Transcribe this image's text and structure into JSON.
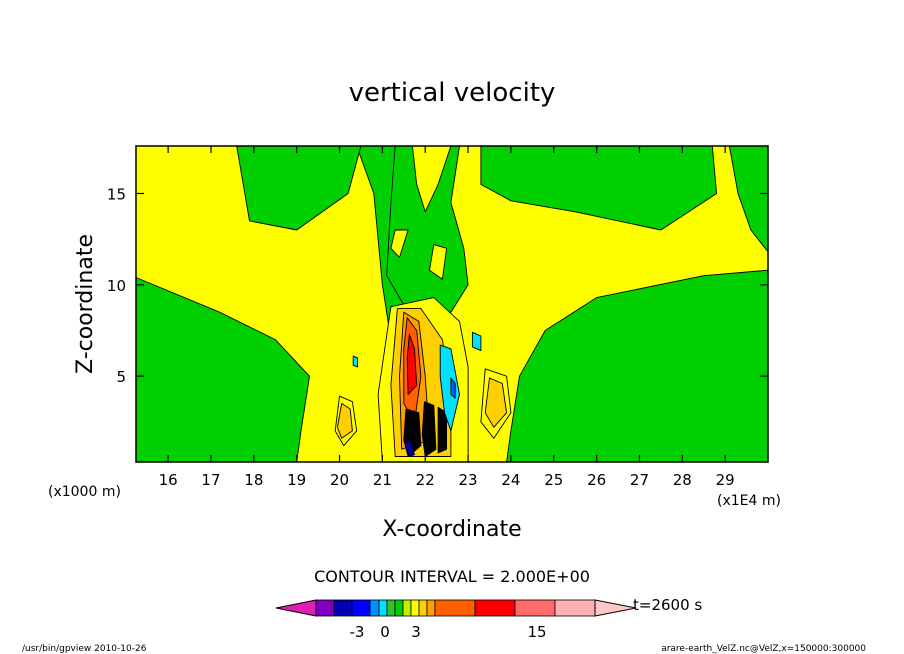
{
  "chart_data": {
    "type": "heatmap",
    "title": "vertical velocity",
    "xlabel": "X-coordinate",
    "ylabel": "Z-coordinate",
    "x_unit_left": "(x1000 m)",
    "x_unit_right": "(x1E4 m)",
    "xlim": [
      15.25,
      30.0
    ],
    "ylim": [
      0.3,
      17.6
    ],
    "x_ticks": [
      "16",
      "17",
      "18",
      "19",
      "20",
      "21",
      "22",
      "23",
      "24",
      "25",
      "26",
      "27",
      "28",
      "29"
    ],
    "y_ticks": [
      "5",
      "10",
      "15"
    ],
    "contour_interval": "CONTOUR INTERVAL = 2.000E+00",
    "colorbar_labels": [
      "-3",
      "0",
      "3",
      "15"
    ],
    "colorbar_colors": [
      "#e020b0",
      "#8000c0",
      "#0000b0",
      "#0000ff",
      "#0090ff",
      "#00e0ff",
      "#30c030",
      "#00d000",
      "#c0f000",
      "#ffff00",
      "#ffd000",
      "#ffa000",
      "#ff6000",
      "#ff0000",
      "#ff6a6a",
      "#ffb0b0",
      "#ffc8c8"
    ],
    "time_label": "t=2600 s",
    "regions": [
      {
        "name": "left-yellow-band",
        "color": "#ffff00",
        "polygon": [
          [
            15.25,
            17.6
          ],
          [
            20.4,
            17.6
          ],
          [
            20.8,
            15.0
          ],
          [
            20.9,
            12.5
          ],
          [
            21.0,
            10.0
          ],
          [
            21.2,
            7.0
          ],
          [
            21.2,
            0.3
          ],
          [
            19.0,
            0.3
          ],
          [
            19.1,
            2.0
          ],
          [
            19.3,
            5.0
          ],
          [
            18.5,
            7.0
          ],
          [
            17.2,
            8.5
          ],
          [
            15.25,
            10.4
          ]
        ]
      },
      {
        "name": "left-upper-green",
        "color": "#00d000",
        "polygon": [
          [
            17.6,
            17.6
          ],
          [
            20.5,
            17.6
          ],
          [
            20.2,
            15.0
          ],
          [
            19.0,
            13.0
          ],
          [
            17.9,
            13.5
          ]
        ]
      },
      {
        "name": "right-yellow-band",
        "color": "#ffff00",
        "polygon": [
          [
            22.6,
            17.6
          ],
          [
            29.1,
            17.6
          ],
          [
            29.3,
            15.0
          ],
          [
            29.6,
            13.0
          ],
          [
            30.0,
            11.8
          ],
          [
            30.0,
            10.8
          ],
          [
            28.5,
            10.5
          ],
          [
            26.0,
            9.3
          ],
          [
            24.8,
            7.5
          ],
          [
            24.2,
            5.0
          ],
          [
            24.0,
            2.0
          ],
          [
            23.9,
            0.3
          ],
          [
            22.4,
            0.3
          ],
          [
            22.4,
            7.5
          ],
          [
            22.3,
            12.0
          ]
        ]
      },
      {
        "name": "right-upper-green",
        "color": "#00d000",
        "polygon": [
          [
            23.3,
            17.6
          ],
          [
            28.7,
            17.6
          ],
          [
            28.8,
            15.0
          ],
          [
            27.5,
            13.0
          ],
          [
            25.5,
            14.0
          ],
          [
            24.0,
            14.6
          ],
          [
            23.3,
            15.5
          ]
        ]
      },
      {
        "name": "center-green-plume",
        "color": "#00d000",
        "polygon": [
          [
            21.3,
            17.6
          ],
          [
            22.8,
            17.6
          ],
          [
            22.6,
            14.5
          ],
          [
            22.9,
            12.0
          ],
          [
            23.0,
            10.0
          ],
          [
            22.6,
            8.5
          ],
          [
            21.6,
            8.5
          ],
          [
            21.1,
            10.5
          ],
          [
            21.2,
            14.5
          ]
        ]
      },
      {
        "name": "center-yellow-core",
        "color": "#ffff00",
        "polygon": [
          [
            21.7,
            17.6
          ],
          [
            22.6,
            17.6
          ],
          [
            22.3,
            15.5
          ],
          [
            22.0,
            14.0
          ],
          [
            21.8,
            15.5
          ]
        ]
      },
      {
        "name": "blob-yellow-left",
        "color": "#ffff00",
        "polygon": [
          [
            21.3,
            13.0
          ],
          [
            21.6,
            13.0
          ],
          [
            21.4,
            11.5
          ],
          [
            21.2,
            12.0
          ]
        ]
      },
      {
        "name": "blob-yellow-right",
        "color": "#ffff00",
        "polygon": [
          [
            22.2,
            12.2
          ],
          [
            22.5,
            12.0
          ],
          [
            22.4,
            10.3
          ],
          [
            22.1,
            10.8
          ]
        ]
      },
      {
        "name": "convective-yellow",
        "color": "#ffff00",
        "polygon": [
          [
            21.2,
            8.8
          ],
          [
            22.2,
            9.3
          ],
          [
            22.8,
            8.0
          ],
          [
            23.0,
            5.5
          ],
          [
            23.0,
            0.3
          ],
          [
            21.0,
            0.3
          ],
          [
            20.9,
            4.0
          ]
        ]
      },
      {
        "name": "convective-orange-light",
        "color": "#ffd000",
        "polygon": [
          [
            21.35,
            8.7
          ],
          [
            21.9,
            8.7
          ],
          [
            22.4,
            7.0
          ],
          [
            22.6,
            4.0
          ],
          [
            22.6,
            0.6
          ],
          [
            21.3,
            0.6
          ],
          [
            21.2,
            4.5
          ]
        ]
      },
      {
        "name": "convective-orange",
        "color": "#ffa000",
        "polygon": [
          [
            21.5,
            8.5
          ],
          [
            21.85,
            8.0
          ],
          [
            22.0,
            5.0
          ],
          [
            22.1,
            1.5
          ],
          [
            21.45,
            1.0
          ],
          [
            21.4,
            5.0
          ]
        ]
      },
      {
        "name": "convective-red-orange",
        "color": "#ff6000",
        "polygon": [
          [
            21.58,
            8.2
          ],
          [
            21.8,
            7.5
          ],
          [
            21.9,
            5.0
          ],
          [
            21.75,
            2.5
          ],
          [
            21.5,
            3.5
          ],
          [
            21.5,
            6.5
          ]
        ]
      },
      {
        "name": "convective-red",
        "color": "#ff0000",
        "polygon": [
          [
            21.63,
            7.3
          ],
          [
            21.75,
            6.5
          ],
          [
            21.8,
            4.5
          ],
          [
            21.6,
            4.0
          ],
          [
            21.58,
            6.0
          ]
        ]
      },
      {
        "name": "updraft-black-1",
        "color": "#000000",
        "polygon": [
          [
            21.55,
            3.2
          ],
          [
            21.85,
            3.0
          ],
          [
            21.9,
            1.2
          ],
          [
            21.6,
            0.6
          ],
          [
            21.5,
            1.5
          ]
        ]
      },
      {
        "name": "updraft-black-2",
        "color": "#000000",
        "polygon": [
          [
            21.98,
            3.6
          ],
          [
            22.2,
            3.4
          ],
          [
            22.25,
            1.0
          ],
          [
            22.0,
            0.6
          ],
          [
            21.93,
            1.8
          ]
        ]
      },
      {
        "name": "updraft-black-3",
        "color": "#000000",
        "polygon": [
          [
            22.3,
            3.3
          ],
          [
            22.5,
            3.0
          ],
          [
            22.5,
            1.0
          ],
          [
            22.3,
            0.8
          ]
        ]
      },
      {
        "name": "updraft-blue",
        "color": "#0000b0",
        "polygon": [
          [
            21.52,
            1.4
          ],
          [
            21.62,
            0.6
          ],
          [
            21.75,
            0.7
          ],
          [
            21.65,
            1.5
          ]
        ]
      },
      {
        "name": "downdraft-cyan",
        "color": "#00e0ff",
        "polygon": [
          [
            22.35,
            6.7
          ],
          [
            22.6,
            6.5
          ],
          [
            22.8,
            4.0
          ],
          [
            22.6,
            2.0
          ],
          [
            22.45,
            3.0
          ],
          [
            22.35,
            5.0
          ]
        ]
      },
      {
        "name": "downdraft-blue",
        "color": "#0060ff",
        "polygon": [
          [
            22.6,
            4.9
          ],
          [
            22.7,
            4.6
          ],
          [
            22.7,
            3.8
          ],
          [
            22.6,
            4.0
          ]
        ]
      },
      {
        "name": "cyan-upper",
        "color": "#00e0ff",
        "polygon": [
          [
            23.1,
            7.4
          ],
          [
            23.3,
            7.2
          ],
          [
            23.3,
            6.4
          ],
          [
            23.1,
            6.6
          ]
        ]
      },
      {
        "name": "cyan-small",
        "color": "#00e0ff",
        "polygon": [
          [
            20.32,
            6.1
          ],
          [
            20.42,
            6.0
          ],
          [
            20.42,
            5.5
          ],
          [
            20.32,
            5.6
          ]
        ]
      },
      {
        "name": "left-yellow-blob",
        "color": "#ffff00",
        "polygon": [
          [
            20.0,
            3.9
          ],
          [
            20.3,
            3.6
          ],
          [
            20.4,
            2.0
          ],
          [
            20.1,
            1.2
          ],
          [
            19.9,
            2.0
          ]
        ]
      },
      {
        "name": "left-orange-blob",
        "color": "#ffd000",
        "polygon": [
          [
            20.05,
            3.5
          ],
          [
            20.25,
            3.2
          ],
          [
            20.3,
            2.0
          ],
          [
            20.05,
            1.6
          ],
          [
            19.95,
            2.2
          ]
        ]
      },
      {
        "name": "right-yellow-blob",
        "color": "#ffff00",
        "polygon": [
          [
            23.4,
            5.4
          ],
          [
            23.9,
            5.0
          ],
          [
            24.0,
            3.0
          ],
          [
            23.6,
            1.6
          ],
          [
            23.3,
            2.5
          ]
        ]
      },
      {
        "name": "right-orange-blob",
        "color": "#ffd000",
        "polygon": [
          [
            23.5,
            4.9
          ],
          [
            23.8,
            4.6
          ],
          [
            23.9,
            3.0
          ],
          [
            23.6,
            2.2
          ],
          [
            23.4,
            3.0
          ]
        ]
      }
    ]
  },
  "footer": {
    "left": "/usr/bin/gpview   2010-10-26",
    "right": "arare-earth_VelZ.nc@VelZ,x=150000:300000"
  }
}
